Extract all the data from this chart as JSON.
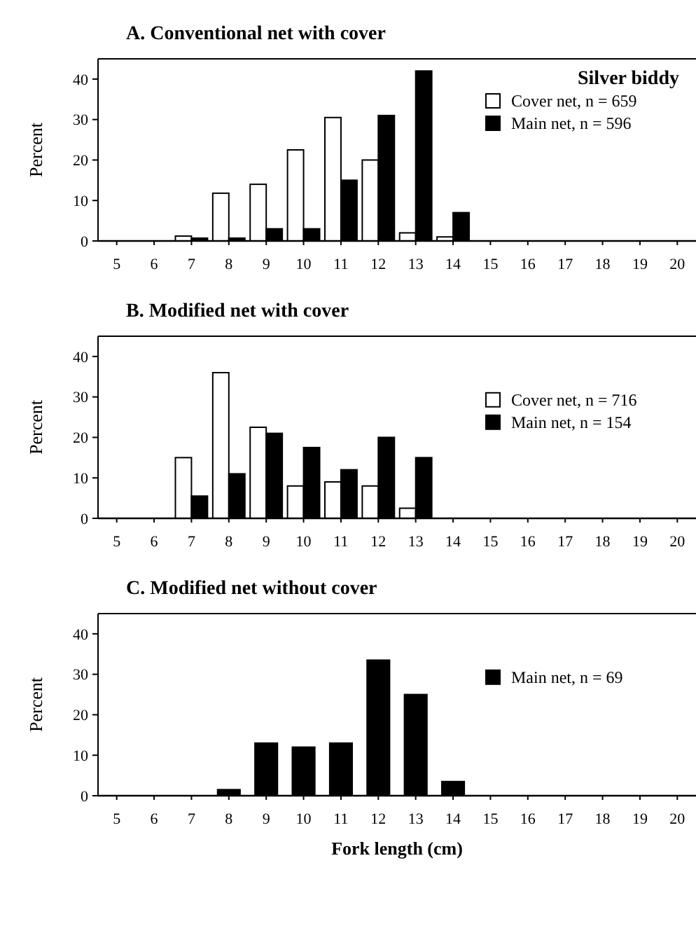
{
  "chart_data": [
    {
      "type": "bar",
      "title": "A. Conventional net with cover",
      "ylabel": "Percent",
      "legend_title": "Silver biddy",
      "categories": [
        "5",
        "6",
        "7",
        "8",
        "9",
        "10",
        "11",
        "12",
        "13",
        "14",
        "15",
        "16",
        "17",
        "18",
        "19",
        "20"
      ],
      "ylim": [
        0,
        45
      ],
      "yticks": [
        0,
        10,
        20,
        30,
        40
      ],
      "legend": "top right",
      "series": [
        {
          "name": "Cover net, n = 659",
          "color": "#ffffff",
          "values": [
            0,
            null,
            1.2,
            11.8,
            14,
            22.5,
            30.5,
            20,
            2,
            1,
            0,
            0,
            0,
            0,
            0,
            0
          ]
        },
        {
          "name": "Main net, n = 596",
          "color": "#000000",
          "values": [
            0,
            0,
            0.7,
            0.7,
            3,
            3,
            15,
            31,
            42,
            7,
            0,
            0,
            0,
            0,
            0,
            0
          ]
        }
      ]
    },
    {
      "type": "bar",
      "title": "B. Modified net with cover",
      "ylabel": "Percent",
      "categories": [
        "5",
        "6",
        "7",
        "8",
        "9",
        "10",
        "11",
        "12",
        "13",
        "14",
        "15",
        "16",
        "17",
        "18",
        "19",
        "20"
      ],
      "ylim": [
        0,
        45
      ],
      "yticks": [
        0,
        10,
        20,
        30,
        40
      ],
      "legend": "right",
      "series": [
        {
          "name": "Cover net, n = 716",
          "color": "#ffffff",
          "values": [
            0,
            null,
            15,
            36,
            22.5,
            8,
            9,
            8,
            2.5,
            0,
            0,
            0,
            0,
            0,
            0,
            0
          ]
        },
        {
          "name": "Main net, n = 154",
          "color": "#000000",
          "values": [
            0,
            0,
            5.5,
            11,
            21,
            17.5,
            12,
            20,
            15,
            0,
            0,
            0,
            0,
            0,
            0,
            0
          ]
        }
      ]
    },
    {
      "type": "bar",
      "title": "C. Modified net without cover",
      "ylabel": "Percent",
      "xlabel": "Fork length (cm)",
      "categories": [
        "5",
        "6",
        "7",
        "8",
        "9",
        "10",
        "11",
        "12",
        "13",
        "14",
        "15",
        "16",
        "17",
        "18",
        "19",
        "20"
      ],
      "ylim": [
        0,
        45
      ],
      "yticks": [
        0,
        10,
        20,
        30,
        40
      ],
      "legend": "right",
      "series": [
        {
          "name": "Main net, n = 69",
          "color": "#000000",
          "values": [
            0,
            0,
            0,
            1.5,
            13,
            12,
            13,
            33.5,
            25,
            3.5,
            0,
            0,
            0,
            0,
            0,
            0
          ]
        }
      ]
    }
  ]
}
